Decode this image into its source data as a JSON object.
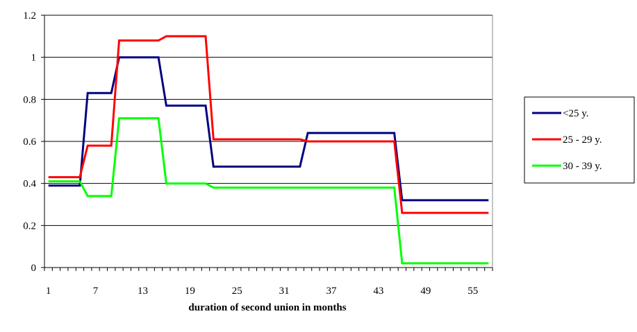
{
  "chart_data": {
    "type": "line",
    "title": "",
    "xlabel": "duration of second union in months",
    "ylabel": "",
    "x": [
      1,
      2,
      3,
      4,
      5,
      6,
      7,
      8,
      9,
      10,
      11,
      12,
      13,
      14,
      15,
      16,
      17,
      18,
      19,
      20,
      21,
      22,
      23,
      24,
      25,
      26,
      27,
      28,
      29,
      30,
      31,
      32,
      33,
      34,
      35,
      36,
      37,
      38,
      39,
      40,
      41,
      42,
      43,
      44,
      45,
      46,
      47,
      48,
      49,
      50,
      51,
      52,
      53,
      54,
      55,
      56,
      57
    ],
    "xticks": [
      "1",
      "7",
      "13",
      "19",
      "25",
      "31",
      "37",
      "43",
      "49",
      "55"
    ],
    "ylim": [
      0,
      1.2
    ],
    "yticks": [
      "0",
      "0.2",
      "0.4",
      "0.6",
      "0.8",
      "1",
      "1.2"
    ],
    "grid": "horizontal",
    "legend_position": "right",
    "series": [
      {
        "name": "<25 y.",
        "color": "#000080",
        "values": [
          0.39,
          0.39,
          0.39,
          0.39,
          0.39,
          0.83,
          0.83,
          0.83,
          0.83,
          1.0,
          1.0,
          1.0,
          1.0,
          1.0,
          1.0,
          0.77,
          0.77,
          0.77,
          0.77,
          0.77,
          0.77,
          0.48,
          0.48,
          0.48,
          0.48,
          0.48,
          0.48,
          0.48,
          0.48,
          0.48,
          0.48,
          0.48,
          0.48,
          0.64,
          0.64,
          0.64,
          0.64,
          0.64,
          0.64,
          0.64,
          0.64,
          0.64,
          0.64,
          0.64,
          0.64,
          0.32,
          0.32,
          0.32,
          0.32,
          0.32,
          0.32,
          0.32,
          0.32,
          0.32,
          0.32,
          0.32,
          0.32
        ]
      },
      {
        "name": "25 - 29 y.",
        "color": "#ff0000",
        "values": [
          0.43,
          0.43,
          0.43,
          0.43,
          0.43,
          0.58,
          0.58,
          0.58,
          0.58,
          1.08,
          1.08,
          1.08,
          1.08,
          1.08,
          1.08,
          1.1,
          1.1,
          1.1,
          1.1,
          1.1,
          1.1,
          0.61,
          0.61,
          0.61,
          0.61,
          0.61,
          0.61,
          0.61,
          0.61,
          0.61,
          0.61,
          0.61,
          0.61,
          0.6,
          0.6,
          0.6,
          0.6,
          0.6,
          0.6,
          0.6,
          0.6,
          0.6,
          0.6,
          0.6,
          0.6,
          0.26,
          0.26,
          0.26,
          0.26,
          0.26,
          0.26,
          0.26,
          0.26,
          0.26,
          0.26,
          0.26,
          0.26
        ]
      },
      {
        "name": "30 - 39 y.",
        "color": "#00ff00",
        "values": [
          0.41,
          0.41,
          0.41,
          0.41,
          0.41,
          0.34,
          0.34,
          0.34,
          0.34,
          0.71,
          0.71,
          0.71,
          0.71,
          0.71,
          0.71,
          0.4,
          0.4,
          0.4,
          0.4,
          0.4,
          0.4,
          0.38,
          0.38,
          0.38,
          0.38,
          0.38,
          0.38,
          0.38,
          0.38,
          0.38,
          0.38,
          0.38,
          0.38,
          0.38,
          0.38,
          0.38,
          0.38,
          0.38,
          0.38,
          0.38,
          0.38,
          0.38,
          0.38,
          0.38,
          0.38,
          0.02,
          0.02,
          0.02,
          0.02,
          0.02,
          0.02,
          0.02,
          0.02,
          0.02,
          0.02,
          0.02,
          0.02
        ]
      }
    ]
  }
}
